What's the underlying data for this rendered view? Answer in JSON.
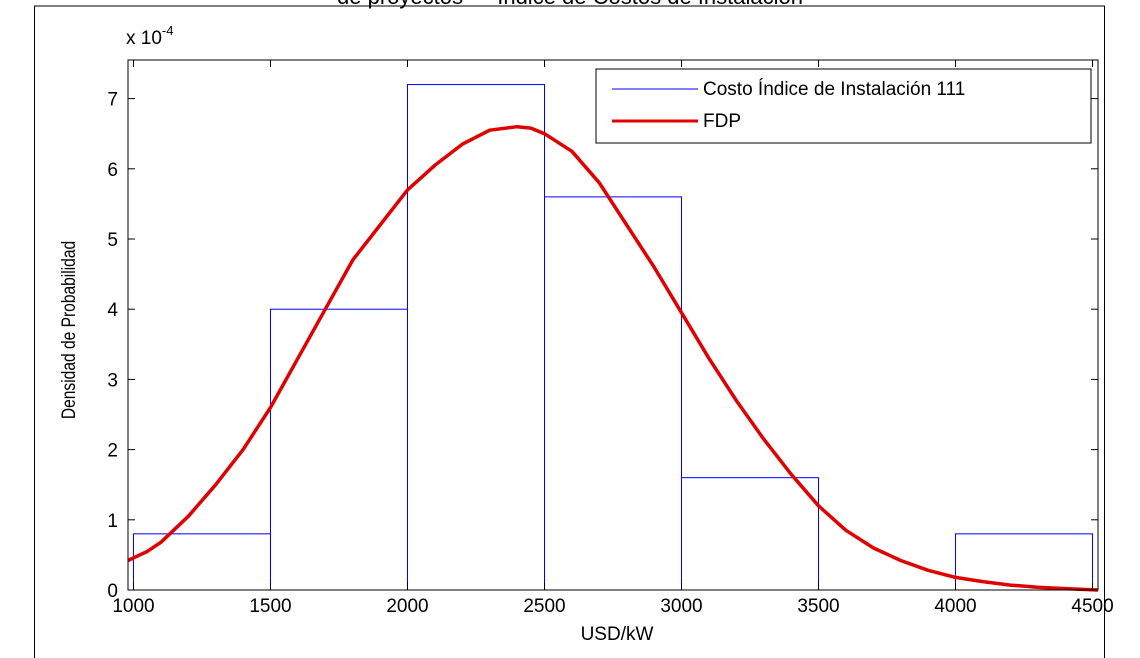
{
  "chart_data": {
    "type": "bar",
    "title": "de proyectos — Índice de Costos de Instalación",
    "xlabel": "USD/kW",
    "ylabel": "Densidad de Probabilidad",
    "y_multiplier": {
      "base": "x 10",
      "exponent": "-4"
    },
    "xlim": [
      980,
      4520
    ],
    "ylim": [
      0,
      7.55
    ],
    "x_ticks": [
      1000,
      1500,
      2000,
      2500,
      3000,
      3500,
      4000,
      4500
    ],
    "y_ticks": [
      0,
      1,
      2,
      3,
      4,
      5,
      6,
      7
    ],
    "grid": false,
    "legend_position": "top-right",
    "series": [
      {
        "name": "Costo Índice de Instalación 111",
        "kind": "histogram",
        "color": "#0000ff",
        "bins": [
          {
            "x0": 1000,
            "x1": 1500,
            "value": 0.8
          },
          {
            "x0": 1500,
            "x1": 2000,
            "value": 4.0
          },
          {
            "x0": 2000,
            "x1": 2500,
            "value": 7.2
          },
          {
            "x0": 2500,
            "x1": 3000,
            "value": 5.6
          },
          {
            "x0": 3000,
            "x1": 3500,
            "value": 1.6
          },
          {
            "x0": 3500,
            "x1": 4000,
            "value": 0.0
          },
          {
            "x0": 4000,
            "x1": 4500,
            "value": 0.8
          }
        ]
      },
      {
        "name": "FDP",
        "kind": "line",
        "color": "#e00000",
        "x": [
          980,
          1050,
          1100,
          1200,
          1300,
          1400,
          1500,
          1600,
          1700,
          1800,
          1900,
          2000,
          2100,
          2200,
          2300,
          2400,
          2450,
          2500,
          2600,
          2700,
          2800,
          2900,
          3000,
          3100,
          3200,
          3300,
          3400,
          3500,
          3600,
          3700,
          3800,
          3900,
          4000,
          4100,
          4200,
          4300,
          4400,
          4520
        ],
        "y": [
          0.42,
          0.55,
          0.68,
          1.05,
          1.5,
          2.0,
          2.6,
          3.3,
          4.0,
          4.7,
          5.2,
          5.7,
          6.05,
          6.35,
          6.55,
          6.6,
          6.58,
          6.5,
          6.25,
          5.8,
          5.2,
          4.6,
          3.95,
          3.3,
          2.7,
          2.15,
          1.65,
          1.2,
          0.85,
          0.6,
          0.42,
          0.28,
          0.18,
          0.12,
          0.07,
          0.04,
          0.02,
          0.0
        ]
      }
    ]
  }
}
